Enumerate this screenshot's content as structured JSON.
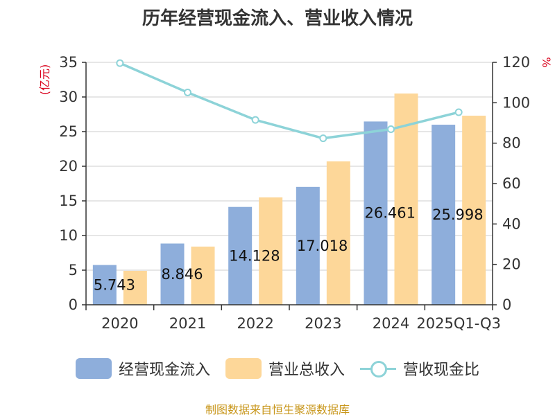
{
  "chart_data": {
    "type": "bar",
    "title": "历年经营现金流入、营业收入情况",
    "categories": [
      "2020",
      "2021",
      "2022",
      "2023",
      "2024",
      "2025Q1-Q3"
    ],
    "series": [
      {
        "name": "经营现金流入",
        "kind": "bar",
        "axis": "left",
        "color": "#8eaedb",
        "values": [
          5.743,
          8.846,
          14.128,
          17.018,
          26.461,
          25.998
        ],
        "labels": [
          "5.743",
          "8.846",
          "14.128",
          "17.018",
          "26.461",
          "25.998"
        ]
      },
      {
        "name": "营业总收入",
        "kind": "bar",
        "axis": "left",
        "color": "#fdd799",
        "values": [
          4.9,
          8.4,
          15.5,
          20.7,
          30.5,
          27.3
        ]
      },
      {
        "name": "营收现金比",
        "kind": "line",
        "axis": "right",
        "color": "#8dd3d8",
        "values": [
          119.6,
          105.1,
          91.5,
          82.4,
          86.9,
          95.3
        ]
      }
    ],
    "y_left": {
      "label": "(亿元)",
      "min": 0,
      "max": 35,
      "ticks": [
        0,
        5,
        10,
        15,
        20,
        25,
        30,
        35
      ]
    },
    "y_right": {
      "label": "%",
      "min": 0,
      "max": 120,
      "ticks": [
        0,
        20,
        40,
        60,
        80,
        100,
        120
      ]
    },
    "grid": true,
    "legend_position": "bottom"
  },
  "legend": {
    "items": [
      "经营现金流入",
      "营业总收入",
      "营收现金比"
    ]
  },
  "source": "制图数据来自恒生聚源数据库"
}
